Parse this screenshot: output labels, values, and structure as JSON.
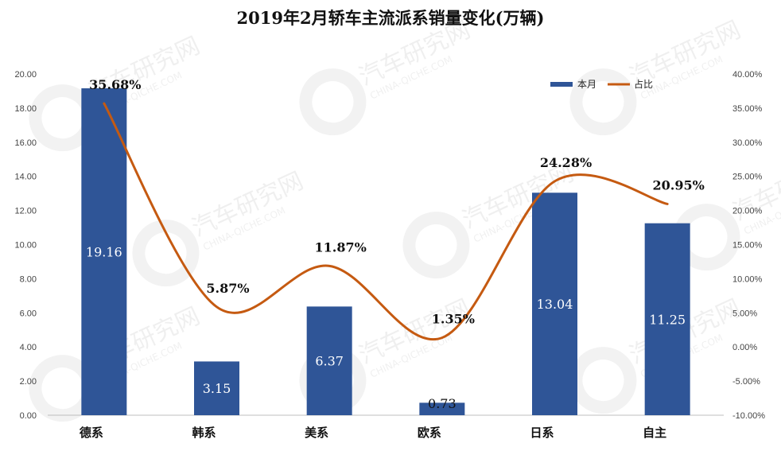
{
  "chart_data": {
    "type": "bar",
    "title": "2019年2月轿车主流派系销量变化(万辆)",
    "categories": [
      "德系",
      "韩系",
      "美系",
      "欧系",
      "日系",
      "自主"
    ],
    "series": [
      {
        "name": "本月",
        "type": "bar",
        "axis": "left",
        "values": [
          19.16,
          3.15,
          6.37,
          0.73,
          13.04,
          11.25
        ],
        "labels": [
          "19.16",
          "3.15",
          "6.37",
          "0.73",
          "13.04",
          "11.25"
        ],
        "color": "#2f5597"
      },
      {
        "name": "占比",
        "type": "line",
        "axis": "right",
        "smooth": true,
        "values": [
          35.68,
          5.87,
          11.87,
          1.35,
          24.28,
          20.95
        ],
        "labels": [
          "35.68%",
          "5.87%",
          "11.87%",
          "1.35%",
          "24.28%",
          "20.95%"
        ],
        "color": "#c55a11"
      }
    ],
    "y_left": {
      "min": 0,
      "max": 20,
      "step": 2,
      "ticks": [
        "0.00",
        "2.00",
        "4.00",
        "6.00",
        "8.00",
        "10.00",
        "12.00",
        "14.00",
        "16.00",
        "18.00",
        "20.00"
      ]
    },
    "y_right": {
      "min": -10,
      "max": 40,
      "step": 5,
      "ticks": [
        "-10.00%",
        "-5.00%",
        "0.00%",
        "5.00%",
        "10.00%",
        "15.00%",
        "20.00%",
        "25.00%",
        "30.00%",
        "35.00%",
        "40.00%"
      ]
    },
    "legend": {
      "position": "top-right",
      "items": [
        "本月",
        "占比"
      ]
    },
    "grid": false
  },
  "watermark": {
    "text": "汽车研究网",
    "subtext": "CHINA-QICHE.COM"
  }
}
